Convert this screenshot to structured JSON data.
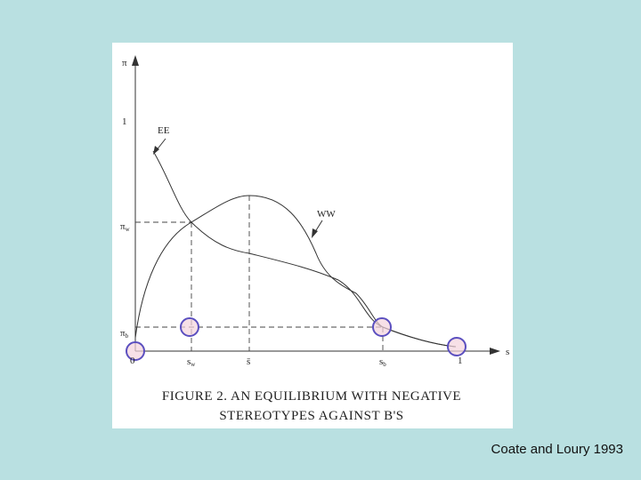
{
  "figure": {
    "axis_labels": {
      "y_axis": "π",
      "x_axis": "s",
      "y_one": "1",
      "y_pi_w": {
        "base": "π",
        "sub": "w"
      },
      "y_pi_b": {
        "base": "π",
        "sub": "b"
      },
      "x_zero": "0",
      "x_s_w": {
        "base": "s",
        "sub": "w"
      },
      "x_s_bar": "s̄",
      "x_s_b": {
        "base": "s",
        "sub": "b"
      },
      "x_one": "1"
    },
    "curve_labels": {
      "ee": "EE",
      "ww": "WW"
    },
    "caption": [
      "FIGURE 2. AN EQUILIBRIUM WITH NEGATIVE",
      "STEREOTYPES AGAINST B'S"
    ]
  },
  "credit": "Coate and Loury 1993"
}
